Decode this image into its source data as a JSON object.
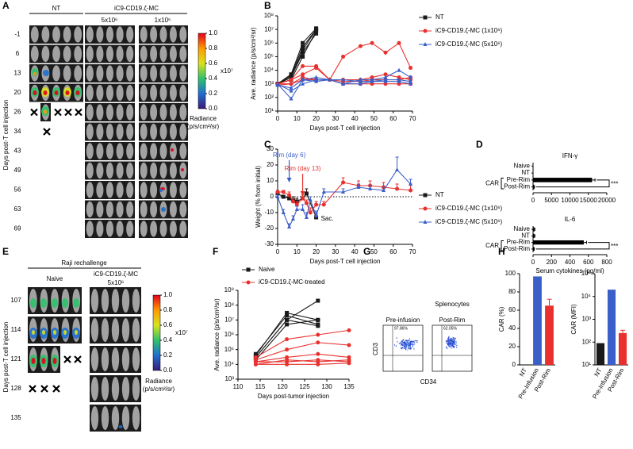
{
  "panel_labels": [
    "A",
    "B",
    "C",
    "D",
    "E",
    "F",
    "G",
    "H"
  ],
  "panel_a": {
    "groups": [
      "NT",
      "iC9-CD19.ζ-MC"
    ],
    "doses": [
      "5x10⁶",
      "1x10⁶"
    ],
    "days": [
      "-1",
      "6",
      "13",
      "20",
      "26",
      "34",
      "43",
      "49",
      "56",
      "63",
      "69"
    ],
    "ylabel": "Days post-T cell injection",
    "colorbar": {
      "ticks": [
        "1.0",
        "0.8",
        "0.6",
        "0.4",
        "0.2",
        "0.0"
      ],
      "multiplier": "x10⁷",
      "label": "Radiance",
      "unit": "(p/s/cm²/sr)"
    }
  },
  "panel_e": {
    "title": "Raji rechallenge",
    "groups": [
      "Naive",
      "iC9-CD19.ζ-MC"
    ],
    "dose": "5x10⁶",
    "days": [
      "107",
      "114",
      "121",
      "128",
      "135"
    ],
    "ylabel": "Days post-T cell injection",
    "colorbar": {
      "ticks": [
        "1.0",
        "0.8",
        "0.6",
        "0.4",
        "0.2",
        "0.0"
      ],
      "multiplier": "x10⁷",
      "label": "Radiance",
      "unit": "(p/s/cm²/sr)"
    }
  },
  "panel_g": {
    "plots": [
      {
        "title": "Pre-infusion",
        "gate": "97.86%"
      },
      {
        "subtitle": "Splenocytes",
        "title": "Post-Rim",
        "gate": "62.05%"
      }
    ],
    "ylabel": "CD3",
    "xlabel": "CD34"
  },
  "chart_data": [
    {
      "type": "line",
      "ylabel": "Ave. radiance (p/s/cm²/sr)",
      "xlabel": "Days post-T cell injection",
      "xlim": [
        0,
        70
      ],
      "xticks": [
        0,
        10,
        20,
        30,
        40,
        50,
        60,
        70
      ],
      "yscale": "log",
      "ylim": [
        10,
        100000000
      ],
      "yticks": [
        {
          "value": 10,
          "label": "10¹"
        },
        {
          "value": 100,
          "label": "10²"
        },
        {
          "value": 1000,
          "label": "10³"
        },
        {
          "value": 10000,
          "label": "10⁴"
        },
        {
          "value": 100000,
          "label": "10⁵"
        },
        {
          "value": 1000000,
          "label": "10⁶"
        },
        {
          "value": 10000000,
          "label": "10⁷"
        },
        {
          "value": 100000000,
          "label": "10⁸"
        }
      ],
      "legend": "right",
      "series": [
        {
          "name": "NT",
          "color": "#1a1a1a",
          "marker": "square",
          "x": [
            0,
            7,
            13,
            20
          ],
          "mice": [
            [
              1000,
              3000,
              300000,
              10000000
            ],
            [
              1000,
              5000,
              1000000,
              12000000
            ],
            [
              1000,
              2000,
              100000,
              8000000
            ],
            [
              1000,
              3000,
              200000,
              5000000
            ],
            [
              1000,
              4000,
              500000,
              10000000
            ]
          ]
        },
        {
          "name": "iC9-CD19.ζ-MC (1x10⁶)",
          "color": "#e8312f",
          "marker": "circle",
          "x": [
            0,
            7,
            13,
            20,
            27,
            34,
            43,
            49,
            56,
            63,
            69
          ],
          "mice": [
            [
              1000,
              2000,
              20000,
              20000,
              2000,
              100000,
              600000,
              1000000,
              200000,
              1000000,
              15000
            ],
            [
              1000,
              2000,
              5000,
              15000,
              2000,
              2000,
              2000,
              3000,
              5000,
              3000,
              2000
            ],
            [
              1000,
              1000,
              3000,
              2000,
              2000,
              1500,
              1500,
              2000,
              2000,
              2000,
              3000
            ],
            [
              800,
              1000,
              2000,
              2000,
              2000,
              1000,
              1000,
              1000,
              1000,
              1000,
              1000
            ]
          ]
        },
        {
          "name": "iC9-CD19.ζ-MC (5x10⁶)",
          "color": "#3a5fc8",
          "marker": "triangle",
          "x": [
            0,
            7,
            13,
            20,
            27,
            34,
            43,
            49,
            56,
            63,
            69
          ],
          "mice": [
            [
              1000,
              80,
              2000,
              3000,
              2000,
              1000,
              2000,
              2000,
              3000,
              10000,
              3000
            ],
            [
              1000,
              300,
              1000,
              2000,
              2000,
              2000,
              1500,
              1500,
              2000,
              2000,
              1500
            ],
            [
              800,
              500,
              2000,
              1500,
              2000,
              1000,
              1000,
              1500,
              1500,
              1500,
              1000
            ]
          ]
        }
      ]
    },
    {
      "type": "line",
      "ylabel": "Weight (% from initial)",
      "xlabel": "Days post-T cell injection",
      "xlim": [
        0,
        70
      ],
      "xticks": [
        0,
        10,
        20,
        30,
        40,
        50,
        60,
        70
      ],
      "ylim": [
        -30,
        30
      ],
      "yticks": [
        -30,
        -20,
        -10,
        0,
        10,
        20,
        30
      ],
      "hline": 0,
      "legend": "right",
      "annotations": [
        {
          "text": "Rim (day 6)",
          "x": 6,
          "color": "#3a5fc8"
        },
        {
          "text": "Rim (day 13)",
          "x": 13,
          "color": "#e8312f"
        }
      ],
      "series": [
        {
          "name": "NT",
          "color": "#1a1a1a",
          "marker": "square",
          "x": [
            0,
            3,
            6,
            8,
            10,
            13,
            15,
            20
          ],
          "values": [
            2,
            0,
            -1,
            -2,
            -3,
            -1,
            2,
            -13
          ],
          "errors": [
            1,
            1,
            1,
            2,
            2,
            2,
            3,
            2
          ],
          "end_label": "Sac."
        },
        {
          "name": "iC9-CD19.ζ-MC (1x10⁶)",
          "color": "#e8312f",
          "marker": "circle",
          "x": [
            0,
            3,
            6,
            8,
            10,
            13,
            15,
            17,
            20,
            24,
            34,
            42,
            48,
            55,
            62,
            69
          ],
          "values": [
            3,
            3,
            1,
            -3,
            -5,
            -1,
            -4,
            -10,
            -5,
            -5,
            9,
            7,
            7,
            6,
            5,
            4
          ],
          "errors": [
            1,
            1,
            2,
            2,
            2,
            2,
            2,
            3,
            2,
            2,
            3,
            3,
            3,
            3,
            3,
            4
          ]
        },
        {
          "name": "iC9-CD19.ζ-MC (5x10⁶)",
          "color": "#3a5fc8",
          "marker": "triangle",
          "x": [
            0,
            3,
            6,
            8,
            10,
            13,
            15,
            17,
            20,
            24,
            34,
            42,
            48,
            55,
            62,
            69
          ],
          "values": [
            0,
            -10,
            -19,
            -14,
            -8,
            -8,
            -13,
            -2,
            -12,
            3,
            3,
            6,
            5,
            4,
            17,
            8
          ],
          "errors": [
            1,
            2,
            2,
            2,
            2,
            3,
            3,
            2,
            3,
            2,
            2,
            2,
            2,
            2,
            8,
            3
          ]
        }
      ]
    },
    {
      "type": "hbar",
      "title": "IFN-γ",
      "categories": [
        "Naive",
        "NT",
        "Pre-Rim",
        "Post-Rim"
      ],
      "values": [
        0,
        0,
        16000,
        300
      ],
      "errors": [
        0,
        0,
        800,
        100
      ],
      "color": "#000000",
      "xlim": [
        0,
        20000
      ],
      "xticks": [
        0,
        5000,
        10000,
        15000,
        20000
      ],
      "group_label": "CAR",
      "significance": "***"
    },
    {
      "type": "hbar",
      "title": "IL-6",
      "categories": [
        "Naive",
        "NT",
        "Pre-Rim",
        "Post-Rim"
      ],
      "values": [
        15,
        15,
        550,
        10
      ],
      "errors": [
        5,
        5,
        30,
        3
      ],
      "color": "#000000",
      "xlim": [
        0,
        800
      ],
      "xticks": [
        0,
        200,
        400,
        600,
        800
      ],
      "group_label": "CAR",
      "significance": "***",
      "xlabel": "Serum cytokines (pg/ml)"
    },
    {
      "type": "line",
      "ylabel": "Ave. radiance (p/s/cm²/sr)",
      "xlabel": "Days post-tumor injection",
      "xlim": [
        110,
        135
      ],
      "xticks": [
        110,
        115,
        120,
        125,
        130,
        135
      ],
      "yscale": "log",
      "ylim": [
        1000,
        1000000000
      ],
      "yticks": [
        {
          "value": 1000,
          "label": "10³"
        },
        {
          "value": 10000,
          "label": "10⁴"
        },
        {
          "value": 100000,
          "label": "10⁵"
        },
        {
          "value": 1000000,
          "label": "10⁶"
        },
        {
          "value": 10000000,
          "label": "10⁷"
        },
        {
          "value": 100000000,
          "label": "10⁸"
        },
        {
          "value": 1000000000,
          "label": "10⁹"
        }
      ],
      "legend": "upper left",
      "series": [
        {
          "name": "Naive",
          "color": "#1a1a1a",
          "marker": "square",
          "x": [
            114,
            121,
            128
          ],
          "mice": [
            [
              30000,
              10000000,
              200000000
            ],
            [
              40000,
              30000000,
              10000000
            ],
            [
              50000,
              20000000,
              5000000
            ],
            [
              30000,
              10000000,
              4000000
            ],
            [
              20000,
              5000000,
              10000000
            ]
          ]
        },
        {
          "name": "iC9-CD19.ζ-MC-treated",
          "color": "#e8312f",
          "marker": "circle",
          "x": [
            114,
            121,
            128,
            135
          ],
          "mice": [
            [
              30000,
              500000,
              1000000,
              2000000
            ],
            [
              20000,
              100000,
              300000,
              200000
            ],
            [
              15000,
              30000,
              50000,
              30000
            ],
            [
              10000,
              20000,
              15000,
              20000
            ],
            [
              10000,
              10000,
              10000,
              12000
            ],
            [
              15000,
              15000,
              20000,
              15000
            ]
          ]
        }
      ]
    },
    {
      "type": "bar",
      "ylabel": "CAR (%)",
      "categories": [
        "NT",
        "Pre-Infusion",
        "Post-Rim"
      ],
      "values": [
        0,
        97,
        65
      ],
      "errors": [
        null,
        null,
        7
      ],
      "colors": [
        "#1a1a1a",
        "#3a5fc8",
        "#e8312f"
      ],
      "ylim": [
        0,
        100
      ],
      "yticks": [
        0,
        20,
        40,
        60,
        80,
        100
      ]
    },
    {
      "type": "bar",
      "ylabel": "CAR (MFI)",
      "categories": [
        "NT",
        "Pre-Infusion",
        "Post-Rim"
      ],
      "values": [
        90,
        20000,
        250
      ],
      "errors": [
        null,
        null,
        80
      ],
      "colors": [
        "#1a1a1a",
        "#3a5fc8",
        "#e8312f"
      ],
      "yscale": "log",
      "ylim": [
        10,
        100000
      ],
      "yticks": [
        {
          "value": 10,
          "label": "10¹"
        },
        {
          "value": 100,
          "label": "10²"
        },
        {
          "value": 1000,
          "label": "10³"
        },
        {
          "value": 10000,
          "label": "10⁴"
        },
        {
          "value": 100000,
          "label": "10⁵"
        }
      ]
    }
  ]
}
